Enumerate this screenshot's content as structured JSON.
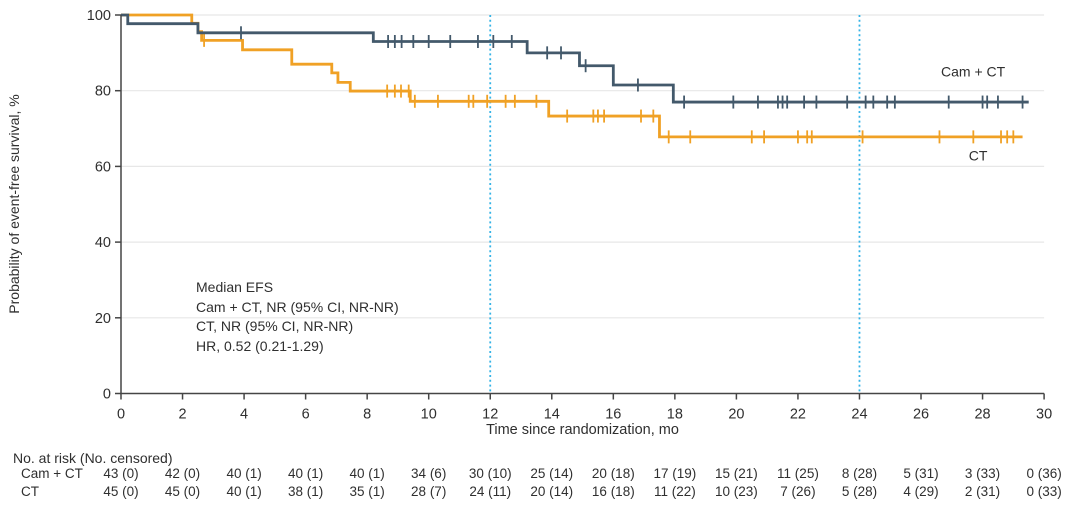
{
  "chart_data": {
    "type": "line",
    "subtype": "kaplan-meier-step",
    "title": "",
    "xlabel": "Time since randomization, mo",
    "ylabel": "Probability of event-free survival, %",
    "xlim": [
      0,
      30
    ],
    "ylim": [
      0,
      100
    ],
    "x_ticks": [
      0,
      2,
      4,
      6,
      8,
      10,
      12,
      14,
      16,
      18,
      20,
      22,
      24,
      26,
      28,
      30
    ],
    "y_ticks": [
      0,
      20,
      40,
      60,
      80,
      100
    ],
    "grid": "horizontal-light",
    "grid_color": "#e7e7e7",
    "axis_color": "#454545",
    "text_color": "#2f2f2f",
    "reference_lines_x": [
      12,
      24
    ],
    "reference_line_color": "#35b3e6",
    "legend_position": "curve-end-labels",
    "series": [
      {
        "name": "CT",
        "color": "#f0a125",
        "steps": [
          [
            0,
            100
          ],
          [
            2.3,
            97.8
          ],
          [
            2.5,
            95.6
          ],
          [
            2.62,
            93.3
          ],
          [
            3.95,
            90.8
          ],
          [
            5.55,
            87.0
          ],
          [
            6.85,
            84.7
          ],
          [
            7.05,
            82.2
          ],
          [
            7.45,
            79.9
          ],
          [
            9.4,
            77.2
          ],
          [
            13.9,
            73.3
          ],
          [
            17.5,
            67.8
          ]
        ],
        "end_x": 29.3,
        "censor_times": [
          2.7,
          8.65,
          8.9,
          9.1,
          9.35,
          9.55,
          10.3,
          11.3,
          11.45,
          11.9,
          12.5,
          12.8,
          13.5,
          14.5,
          15.35,
          15.5,
          15.7,
          16.9,
          17.3,
          17.8,
          18.5,
          20.5,
          20.9,
          22.0,
          22.3,
          22.45,
          24.1,
          26.6,
          27.7,
          28.6,
          28.8,
          29.0
        ],
        "label": "CT",
        "label_x": 27.55,
        "label_y": 61.5
      },
      {
        "name": "Cam + CT",
        "color": "#43596b",
        "steps": [
          [
            0,
            100
          ],
          [
            0.22,
            97.7
          ],
          [
            2.5,
            95.3
          ],
          [
            8.2,
            93.0
          ],
          [
            13.2,
            90.0
          ],
          [
            14.9,
            86.6
          ],
          [
            16.0,
            81.5
          ],
          [
            17.95,
            77.0
          ]
        ],
        "end_x": 29.5,
        "censor_times": [
          3.9,
          8.68,
          8.9,
          9.12,
          9.5,
          10.0,
          10.7,
          11.6,
          12.1,
          12.7,
          13.85,
          14.3,
          15.1,
          16.8,
          18.3,
          19.9,
          20.7,
          21.35,
          21.5,
          21.65,
          22.2,
          22.6,
          23.6,
          24.2,
          24.45,
          24.9,
          25.15,
          26.9,
          28.0,
          28.15,
          28.5,
          29.3
        ],
        "label": "Cam + CT",
        "label_x": 26.65,
        "label_y": 83.8
      }
    ],
    "annotation": {
      "lines": [
        "Median EFS",
        "Cam + CT, NR (95% CI, NR-NR)",
        "CT, NR (95% CI, NR-NR)",
        "HR, 0.52 (0.21-1.29)"
      ]
    }
  },
  "risk_table": {
    "header": "No. at risk (No. censored)",
    "time_points": [
      0,
      2,
      4,
      6,
      8,
      10,
      12,
      14,
      16,
      18,
      20,
      22,
      24,
      26,
      28,
      30
    ],
    "rows": [
      {
        "label": "Cam + CT",
        "values": [
          "43 (0)",
          "42 (0)",
          "40 (1)",
          "40 (1)",
          "40 (1)",
          "34 (6)",
          "30 (10)",
          "25 (14)",
          "20 (18)",
          "17 (19)",
          "15 (21)",
          "11 (25)",
          "8 (28)",
          "5 (31)",
          "3 (33)",
          "0 (36)"
        ]
      },
      {
        "label": "CT",
        "values": [
          "45 (0)",
          "45 (0)",
          "40 (1)",
          "38 (1)",
          "35 (1)",
          "28 (7)",
          "24 (11)",
          "20 (14)",
          "16 (18)",
          "11 (22)",
          "10 (23)",
          "7 (26)",
          "5 (28)",
          "4 (29)",
          "2 (31)",
          "0 (33)"
        ]
      }
    ]
  }
}
